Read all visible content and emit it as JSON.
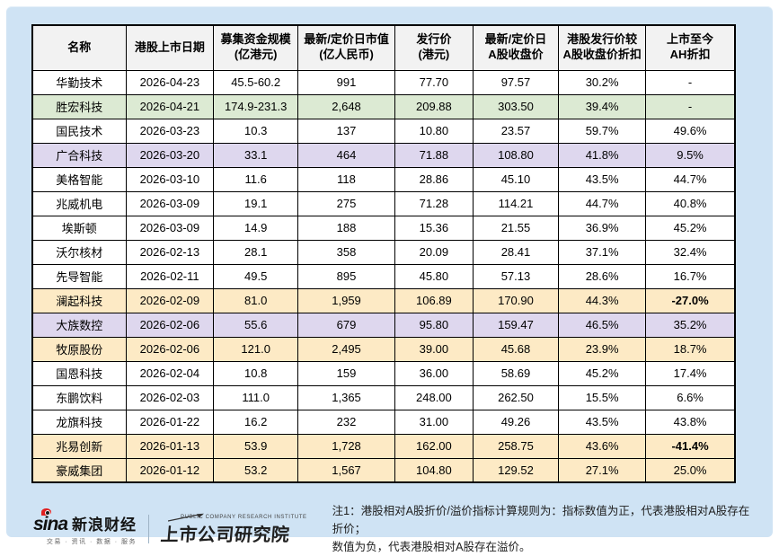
{
  "colors": {
    "page_bg": "#ffffff",
    "panel_bg": "#cfe3f4",
    "header_bg": "#f2f2f2",
    "white": "#ffffff",
    "green": "#dcead3",
    "purple": "#ded7ee",
    "yellow": "#fdeac5",
    "negative_red": "#fe0000"
  },
  "chart_data": {
    "type": "table",
    "title": "",
    "columns": [
      "名称",
      "港股上市日期",
      "募集资金规模\n(亿港元)",
      "最新/定价日市值\n(亿人民币)",
      "发行价\n(港元)",
      "最新/定价日\nA股收盘价",
      "港股发行价较\nA股收盘价折扣",
      "上市至今\nAH折扣"
    ],
    "rows": [
      {
        "name": "华勤技术",
        "date": "2026-04-23",
        "raise": "45.5-60.2",
        "mcap": "991",
        "issue_price": "77.70",
        "a_close": "97.57",
        "discount": "30.2%",
        "ah_discount": "-",
        "highlight": "white"
      },
      {
        "name": "胜宏科技",
        "date": "2026-04-21",
        "raise": "174.9-231.3",
        "mcap": "2,648",
        "issue_price": "209.88",
        "a_close": "303.50",
        "discount": "39.4%",
        "ah_discount": "-",
        "highlight": "green"
      },
      {
        "name": "国民技术",
        "date": "2026-03-23",
        "raise": "10.3",
        "mcap": "137",
        "issue_price": "10.80",
        "a_close": "23.57",
        "discount": "59.7%",
        "ah_discount": "49.6%",
        "highlight": "white"
      },
      {
        "name": "广合科技",
        "date": "2026-03-20",
        "raise": "33.1",
        "mcap": "464",
        "issue_price": "71.88",
        "a_close": "108.80",
        "discount": "41.8%",
        "ah_discount": "9.5%",
        "highlight": "purple"
      },
      {
        "name": "美格智能",
        "date": "2026-03-10",
        "raise": "11.6",
        "mcap": "118",
        "issue_price": "28.86",
        "a_close": "45.10",
        "discount": "43.5%",
        "ah_discount": "44.7%",
        "highlight": "white"
      },
      {
        "name": "兆威机电",
        "date": "2026-03-09",
        "raise": "19.1",
        "mcap": "275",
        "issue_price": "71.28",
        "a_close": "114.21",
        "discount": "44.7%",
        "ah_discount": "40.8%",
        "highlight": "white"
      },
      {
        "name": "埃斯顿",
        "date": "2026-03-09",
        "raise": "14.9",
        "mcap": "188",
        "issue_price": "15.36",
        "a_close": "21.55",
        "discount": "36.9%",
        "ah_discount": "45.2%",
        "highlight": "white"
      },
      {
        "name": "沃尔核材",
        "date": "2026-02-13",
        "raise": "28.1",
        "mcap": "358",
        "issue_price": "20.09",
        "a_close": "28.41",
        "discount": "37.1%",
        "ah_discount": "32.4%",
        "highlight": "white"
      },
      {
        "name": "先导智能",
        "date": "2026-02-11",
        "raise": "49.5",
        "mcap": "895",
        "issue_price": "45.80",
        "a_close": "57.13",
        "discount": "28.6%",
        "ah_discount": "16.7%",
        "highlight": "white"
      },
      {
        "name": "澜起科技",
        "date": "2026-02-09",
        "raise": "81.0",
        "mcap": "1,959",
        "issue_price": "106.89",
        "a_close": "170.90",
        "discount": "44.3%",
        "ah_discount": "-27.0%",
        "highlight": "yellow"
      },
      {
        "name": "大族数控",
        "date": "2026-02-06",
        "raise": "55.6",
        "mcap": "679",
        "issue_price": "95.80",
        "a_close": "159.47",
        "discount": "46.5%",
        "ah_discount": "35.2%",
        "highlight": "purple"
      },
      {
        "name": "牧原股份",
        "date": "2026-02-06",
        "raise": "121.0",
        "mcap": "2,495",
        "issue_price": "39.00",
        "a_close": "45.68",
        "discount": "23.9%",
        "ah_discount": "18.7%",
        "highlight": "yellow"
      },
      {
        "name": "国恩科技",
        "date": "2026-02-04",
        "raise": "10.8",
        "mcap": "159",
        "issue_price": "36.00",
        "a_close": "58.69",
        "discount": "45.2%",
        "ah_discount": "17.4%",
        "highlight": "white"
      },
      {
        "name": "东鹏饮料",
        "date": "2026-02-03",
        "raise": "111.0",
        "mcap": "1,365",
        "issue_price": "248.00",
        "a_close": "262.50",
        "discount": "15.5%",
        "ah_discount": "6.6%",
        "highlight": "white"
      },
      {
        "name": "龙旗科技",
        "date": "2026-01-22",
        "raise": "16.2",
        "mcap": "232",
        "issue_price": "31.00",
        "a_close": "49.26",
        "discount": "43.5%",
        "ah_discount": "43.8%",
        "highlight": "white"
      },
      {
        "name": "兆易创新",
        "date": "2026-01-13",
        "raise": "53.9",
        "mcap": "1,728",
        "issue_price": "162.00",
        "a_close": "258.75",
        "discount": "43.6%",
        "ah_discount": "-41.4%",
        "highlight": "yellow"
      },
      {
        "name": "豪威集团",
        "date": "2026-01-12",
        "raise": "53.2",
        "mcap": "1,567",
        "issue_price": "104.80",
        "a_close": "129.52",
        "discount": "27.1%",
        "ah_discount": "25.0%",
        "highlight": "yellow"
      }
    ]
  },
  "footer": {
    "sina_logo": {
      "wordmark": "sina",
      "brand": "新浪财经",
      "tagline": "交易 · 资讯 · 数据 · 服务"
    },
    "institute_logo": {
      "subtitle": "PUBLIC COMPANY RESEARCH INSTITUTE",
      "title": "上市公司研究院"
    },
    "note": "注1：港股相对A股折价/溢价指标计算规则为：指标数值为正，代表港股相对A股存在折价；\n数值为负，代表港股相对A股存在溢价。"
  }
}
